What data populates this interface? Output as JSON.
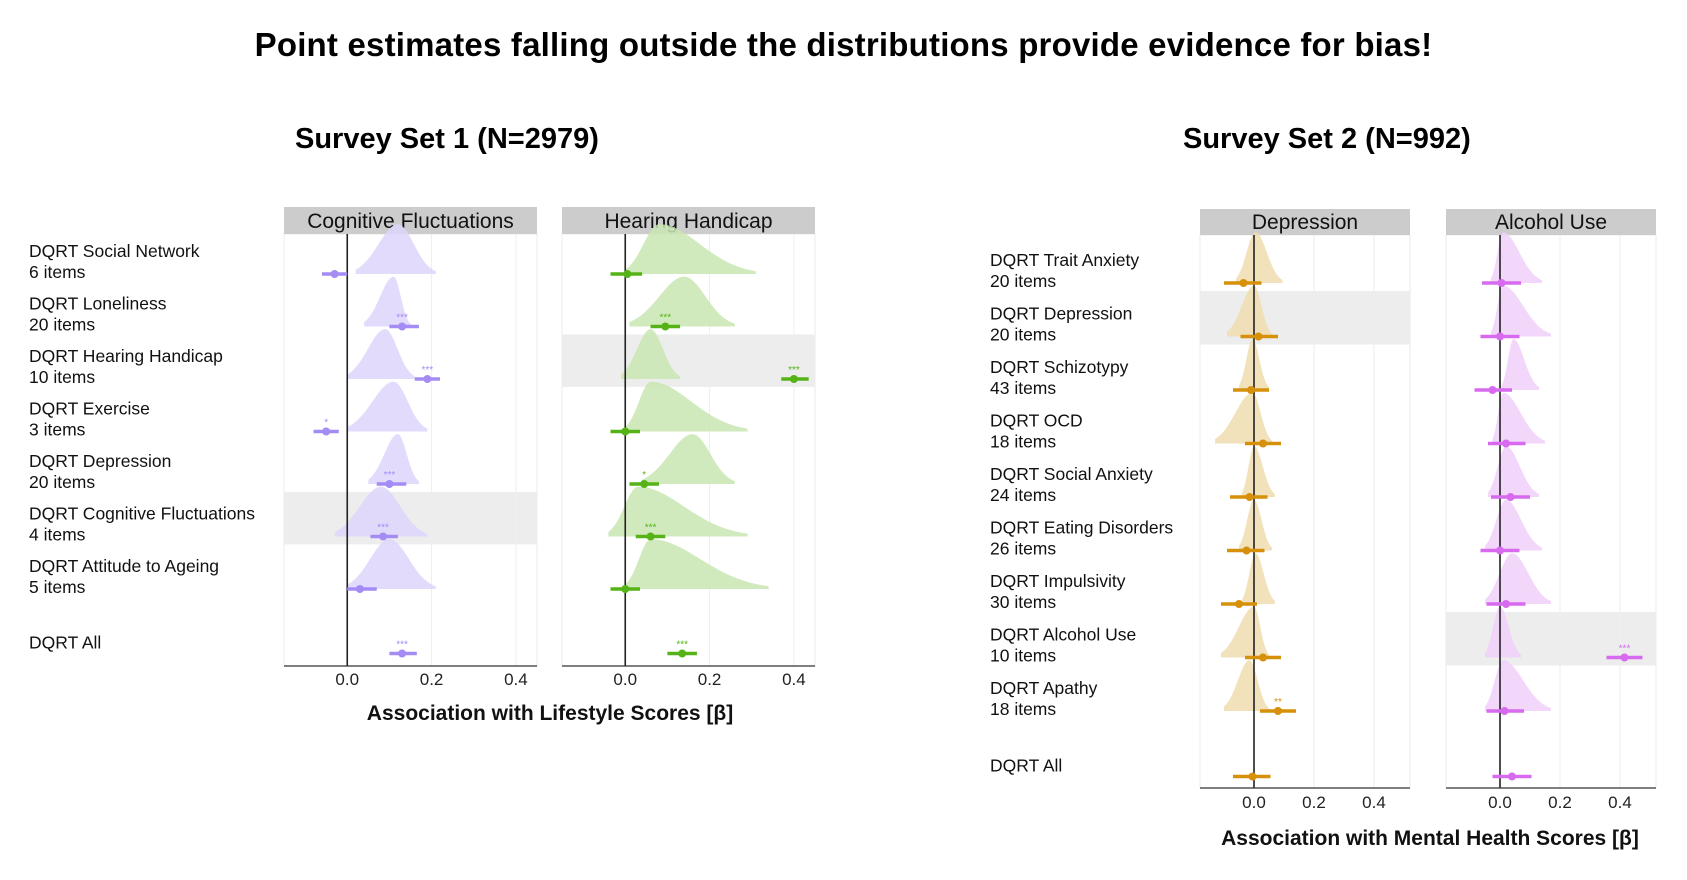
{
  "title": "Point estimates falling outside the distributions provide evidence for bias!",
  "chart_data": [
    {
      "type": "ridgeline-forest",
      "title": "Survey Set 1 (N=2979)",
      "xlabel": "Association with Lifestyle Scores [β]",
      "xlim": [
        -0.15,
        0.45
      ],
      "xticks": [
        "0.0",
        "0.2",
        "0.4"
      ],
      "xtick_values": [
        0.0,
        0.2,
        0.4
      ],
      "rows": [
        {
          "name": "DQRT Social Network",
          "items": "6 items"
        },
        {
          "name": "DQRT Loneliness",
          "items": "20 items"
        },
        {
          "name": "DQRT Hearing Handicap",
          "items": "10 items"
        },
        {
          "name": "DQRT Exercise",
          "items": "3 items"
        },
        {
          "name": "DQRT Depression",
          "items": "20 items"
        },
        {
          "name": "DQRT Cognitive Fluctuations",
          "items": "4 items"
        },
        {
          "name": "DQRT Attitude to Ageing",
          "items": "5 items"
        },
        {
          "name": "DQRT All",
          "items": ""
        }
      ],
      "facets": [
        {
          "label": "Cognitive Fluctuations",
          "color": "#a58cf5",
          "fill": "#ddd5fb",
          "highlight_row": 5,
          "estimates": [
            {
              "est": -0.03,
              "lo": -0.06,
              "hi": 0.0,
              "sig": "",
              "dist": [
                0.02,
                0.12,
                0.21,
                0.05
              ]
            },
            {
              "est": 0.13,
              "lo": 0.1,
              "hi": 0.17,
              "sig": "***",
              "dist": [
                0.04,
                0.11,
                0.15,
                0.04
              ]
            },
            {
              "est": 0.19,
              "lo": 0.16,
              "hi": 0.22,
              "sig": "***",
              "dist": [
                0.0,
                0.09,
                0.16,
                0.04
              ]
            },
            {
              "est": -0.05,
              "lo": -0.08,
              "hi": -0.02,
              "sig": "*",
              "dist": [
                0.0,
                0.11,
                0.19,
                0.05
              ]
            },
            {
              "est": 0.1,
              "lo": 0.07,
              "hi": 0.14,
              "sig": "***",
              "dist": [
                0.05,
                0.12,
                0.17,
                0.03
              ]
            },
            {
              "est": 0.085,
              "lo": 0.055,
              "hi": 0.12,
              "sig": "***",
              "dist": [
                -0.03,
                0.08,
                0.19,
                0.05
              ]
            },
            {
              "est": 0.03,
              "lo": 0.0,
              "hi": 0.07,
              "sig": "",
              "dist": [
                0.0,
                0.1,
                0.21,
                0.05
              ]
            },
            {
              "est": 0.13,
              "lo": 0.1,
              "hi": 0.165,
              "sig": "***",
              "dist": null
            }
          ]
        },
        {
          "label": "Hearing Handicap",
          "color": "#55b317",
          "fill": "#c9e6b2",
          "highlight_row": 2,
          "estimates": [
            {
              "est": 0.005,
              "lo": -0.035,
              "hi": 0.04,
              "sig": "",
              "dist": [
                0.0,
                0.08,
                0.31,
                0.05
              ]
            },
            {
              "est": 0.095,
              "lo": 0.06,
              "hi": 0.13,
              "sig": "***",
              "dist": [
                0.01,
                0.14,
                0.26,
                0.05
              ]
            },
            {
              "est": 0.4,
              "lo": 0.37,
              "hi": 0.435,
              "sig": "***",
              "dist": [
                -0.01,
                0.06,
                0.13,
                0.03
              ]
            },
            {
              "est": 0.0,
              "lo": -0.035,
              "hi": 0.035,
              "sig": "",
              "dist": [
                0.0,
                0.06,
                0.29,
                0.05
              ]
            },
            {
              "est": 0.045,
              "lo": 0.01,
              "hi": 0.08,
              "sig": "*",
              "dist": [
                0.04,
                0.16,
                0.26,
                0.04
              ]
            },
            {
              "est": 0.06,
              "lo": 0.025,
              "hi": 0.095,
              "sig": "***",
              "dist": [
                -0.04,
                0.03,
                0.29,
                0.05
              ]
            },
            {
              "est": 0.0,
              "lo": -0.035,
              "hi": 0.035,
              "sig": "",
              "dist": [
                0.0,
                0.06,
                0.34,
                0.05
              ]
            },
            {
              "est": 0.135,
              "lo": 0.1,
              "hi": 0.17,
              "sig": "***",
              "dist": null
            }
          ]
        }
      ]
    },
    {
      "type": "ridgeline-forest",
      "title": "Survey Set 2 (N=992)",
      "xlabel": "Association with Mental Health Scores [β]",
      "xlim": [
        -0.18,
        0.52
      ],
      "xticks": [
        "0.0",
        "0.2",
        "0.4"
      ],
      "xtick_values": [
        0.0,
        0.2,
        0.4
      ],
      "rows": [
        {
          "name": "DQRT Trait Anxiety",
          "items": "20 items"
        },
        {
          "name": "DQRT Depression",
          "items": "20 items"
        },
        {
          "name": "DQRT Schizotypy",
          "items": "43 items"
        },
        {
          "name": "DQRT OCD",
          "items": "18 items"
        },
        {
          "name": "DQRT Social Anxiety",
          "items": "24 items"
        },
        {
          "name": "DQRT Eating Disorders",
          "items": "26 items"
        },
        {
          "name": "DQRT Impulsivity",
          "items": "30 items"
        },
        {
          "name": "DQRT Alcohol Use",
          "items": "10 items"
        },
        {
          "name": "DQRT Apathy",
          "items": "18 items"
        },
        {
          "name": "DQRT All",
          "items": ""
        }
      ],
      "facets": [
        {
          "label": "Depression",
          "color": "#d6900a",
          "fill": "#f0ddb0",
          "highlight_row": 1,
          "estimates": [
            {
              "est": -0.035,
              "lo": -0.1,
              "hi": 0.025,
              "sig": "",
              "dist": [
                -0.06,
                0.005,
                0.095,
                0.02
              ]
            },
            {
              "est": 0.015,
              "lo": -0.045,
              "hi": 0.08,
              "sig": "",
              "dist": [
                -0.09,
                0.0,
                0.06,
                0.02
              ]
            },
            {
              "est": -0.01,
              "lo": -0.07,
              "hi": 0.05,
              "sig": "",
              "dist": [
                -0.05,
                -0.005,
                0.05,
                0.02
              ]
            },
            {
              "est": 0.03,
              "lo": -0.03,
              "hi": 0.09,
              "sig": "",
              "dist": [
                -0.13,
                -0.005,
                0.06,
                0.02
              ]
            },
            {
              "est": -0.015,
              "lo": -0.08,
              "hi": 0.045,
              "sig": "",
              "dist": [
                -0.04,
                0.0,
                0.07,
                0.015
              ]
            },
            {
              "est": -0.025,
              "lo": -0.09,
              "hi": 0.035,
              "sig": "",
              "dist": [
                -0.05,
                0.0,
                0.06,
                0.02
              ]
            },
            {
              "est": -0.05,
              "lo": -0.11,
              "hi": 0.01,
              "sig": "",
              "dist": [
                -0.04,
                0.005,
                0.07,
                0.02
              ]
            },
            {
              "est": 0.03,
              "lo": -0.03,
              "hi": 0.09,
              "sig": "",
              "dist": [
                -0.11,
                0.0,
                0.05,
                0.02
              ]
            },
            {
              "est": 0.08,
              "lo": 0.02,
              "hi": 0.14,
              "sig": "**",
              "dist": [
                -0.1,
                -0.015,
                0.05,
                0.02
              ]
            },
            {
              "est": -0.005,
              "lo": -0.07,
              "hi": 0.055,
              "sig": "",
              "dist": null
            }
          ]
        },
        {
          "label": "Alcohol Use",
          "color": "#d86af0",
          "fill": "#f0d0fa",
          "highlight_row": 7,
          "estimates": [
            {
              "est": 0.005,
              "lo": -0.06,
              "hi": 0.07,
              "sig": "",
              "dist": [
                -0.03,
                0.01,
                0.14,
                0.03
              ]
            },
            {
              "est": 0.0,
              "lo": -0.065,
              "hi": 0.065,
              "sig": "",
              "dist": [
                -0.03,
                0.01,
                0.17,
                0.025
              ]
            },
            {
              "est": -0.025,
              "lo": -0.085,
              "hi": 0.04,
              "sig": "",
              "dist": [
                0.005,
                0.045,
                0.13,
                0.025
              ]
            },
            {
              "est": 0.02,
              "lo": -0.04,
              "hi": 0.085,
              "sig": "",
              "dist": [
                -0.025,
                0.01,
                0.15,
                0.03
              ]
            },
            {
              "est": 0.035,
              "lo": -0.03,
              "hi": 0.1,
              "sig": "",
              "dist": [
                -0.04,
                0.02,
                0.13,
                0.03
              ]
            },
            {
              "est": 0.0,
              "lo": -0.065,
              "hi": 0.065,
              "sig": "",
              "dist": [
                -0.05,
                0.02,
                0.14,
                0.03
              ]
            },
            {
              "est": 0.02,
              "lo": -0.045,
              "hi": 0.085,
              "sig": "",
              "dist": [
                -0.05,
                0.04,
                0.17,
                0.03
              ]
            },
            {
              "est": 0.415,
              "lo": 0.355,
              "hi": 0.475,
              "sig": "***",
              "dist": [
                -0.05,
                0.0,
                0.07,
                0.015
              ]
            },
            {
              "est": 0.015,
              "lo": -0.045,
              "hi": 0.08,
              "sig": "",
              "dist": [
                -0.05,
                0.01,
                0.17,
                0.03
              ]
            },
            {
              "est": 0.04,
              "lo": -0.025,
              "hi": 0.105,
              "sig": "",
              "dist": null
            }
          ]
        }
      ]
    }
  ]
}
